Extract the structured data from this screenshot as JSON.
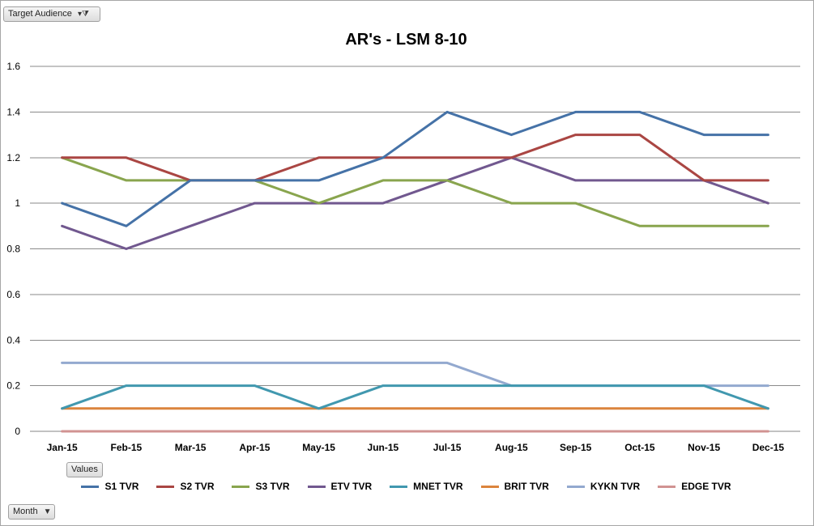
{
  "filter_field": {
    "label": "Target Audience",
    "icon": "filter-icon"
  },
  "values_field": {
    "label": "Values"
  },
  "month_field": {
    "label": "Month",
    "icon": "dropdown-arrow-icon"
  },
  "chart_data": {
    "type": "line",
    "title": "AR's - LSM 8-10",
    "xlabel": "",
    "ylabel": "",
    "ylim": [
      0,
      1.6
    ],
    "yticks": [
      0,
      0.2,
      0.4,
      0.6,
      0.8,
      1,
      1.2,
      1.4,
      1.6
    ],
    "ytick_labels": [
      "0",
      "0.2",
      "0.4",
      "0.6",
      "0.8",
      "1",
      "1.2",
      "1.4",
      "1.6"
    ],
    "grid": true,
    "legend_position": "bottom",
    "categories": [
      "Jan-15",
      "Feb-15",
      "Mar-15",
      "Apr-15",
      "May-15",
      "Jun-15",
      "Jul-15",
      "Aug-15",
      "Sep-15",
      "Oct-15",
      "Nov-15",
      "Dec-15"
    ],
    "series": [
      {
        "name": "S1 TVR",
        "color": "#4572a7",
        "values": [
          1.0,
          0.9,
          1.1,
          1.1,
          1.1,
          1.2,
          1.4,
          1.3,
          1.4,
          1.4,
          1.3,
          1.3
        ]
      },
      {
        "name": "S2 TVR",
        "color": "#aa4643",
        "values": [
          1.2,
          1.2,
          1.1,
          1.1,
          1.2,
          1.2,
          1.2,
          1.2,
          1.3,
          1.3,
          1.1,
          1.1
        ]
      },
      {
        "name": "S3 TVR",
        "color": "#89a54e",
        "values": [
          1.2,
          1.1,
          1.1,
          1.1,
          1.0,
          1.1,
          1.1,
          1.0,
          1.0,
          0.9,
          0.9,
          0.9
        ]
      },
      {
        "name": "ETV TVR",
        "color": "#71588f",
        "values": [
          0.9,
          0.8,
          0.9,
          1.0,
          1.0,
          1.0,
          1.1,
          1.2,
          1.1,
          1.1,
          1.1,
          1.0
        ]
      },
      {
        "name": "MNET TVR",
        "color": "#4198af",
        "values": [
          0.1,
          0.2,
          0.2,
          0.2,
          0.1,
          0.2,
          0.2,
          0.2,
          0.2,
          0.2,
          0.2,
          0.1
        ]
      },
      {
        "name": "BRIT TVR",
        "color": "#db843d",
        "values": [
          0.1,
          0.1,
          0.1,
          0.1,
          0.1,
          0.1,
          0.1,
          0.1,
          0.1,
          0.1,
          0.1,
          0.1
        ]
      },
      {
        "name": "KYKN TVR",
        "color": "#93a9cf",
        "values": [
          0.3,
          0.3,
          0.3,
          0.3,
          0.3,
          0.3,
          0.3,
          0.2,
          0.2,
          0.2,
          0.2,
          0.2
        ]
      },
      {
        "name": "EDGE TVR",
        "color": "#d19392",
        "values": [
          0,
          0,
          0,
          0,
          0,
          0,
          0,
          0,
          0,
          0,
          0,
          0
        ]
      }
    ]
  }
}
